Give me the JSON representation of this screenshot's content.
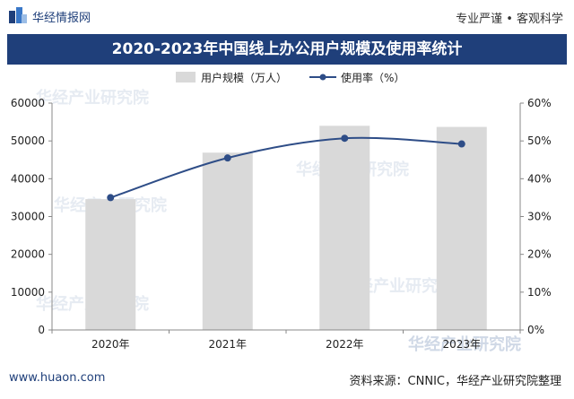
{
  "header": {
    "brand": "华经情报网",
    "slogan": "专业严谨 • 客观科学",
    "title": "2020-2023年中国线上办公用户规模及使用率统计"
  },
  "footer": {
    "website": "www.huaon.com",
    "source": "资料来源：CNNIC，华经产业研究院整理"
  },
  "watermark": "华经产业研究院",
  "colors": {
    "bar": "#d9d9d9",
    "line": "#2e4d87",
    "title_bg": "#1f3f7a"
  },
  "chart_data": {
    "type": "bar",
    "categories": [
      "2020年",
      "2021年",
      "2022年",
      "2023年"
    ],
    "series": [
      {
        "name": "用户规模（万人）",
        "type": "bar",
        "axis": "left",
        "values": [
          34600,
          46900,
          54000,
          53700
        ]
      },
      {
        "name": "使用率（%）",
        "type": "line",
        "axis": "right",
        "values": [
          35.0,
          45.5,
          50.7,
          49.2
        ]
      }
    ],
    "left_axis": {
      "ylim": [
        0,
        60000
      ],
      "ticks": [
        "0",
        "10000",
        "20000",
        "30000",
        "40000",
        "50000",
        "60000"
      ]
    },
    "right_axis": {
      "ylim": [
        0,
        60
      ],
      "ticks": [
        "0%",
        "10%",
        "20%",
        "30%",
        "40%",
        "50%",
        "60%"
      ]
    },
    "legend_position": "top-center",
    "grid": false
  }
}
